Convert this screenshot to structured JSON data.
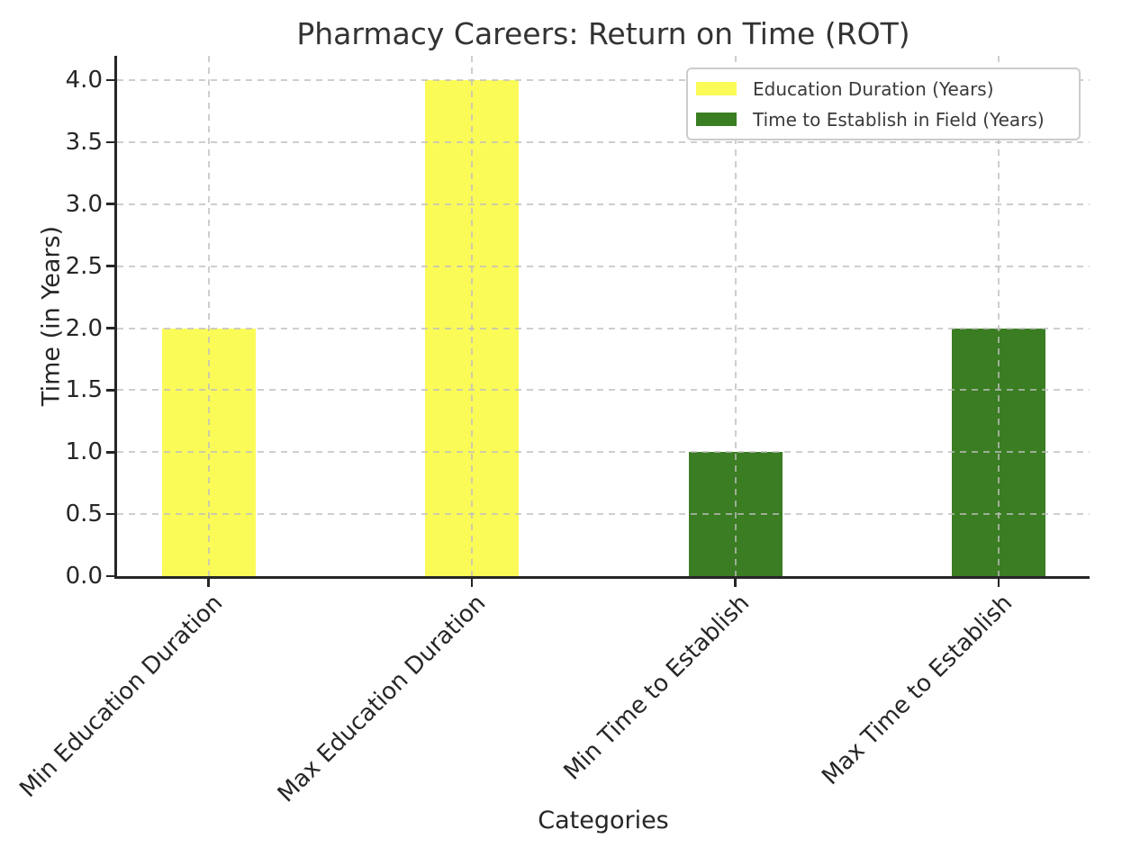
{
  "chart_data": {
    "type": "bar",
    "title": "Pharmacy Careers: Return on Time (ROT)",
    "xlabel": "Categories",
    "ylabel": "Time (in Years)",
    "categories": [
      "Min Education Duration",
      "Max Education Duration",
      "Min Time to Establish",
      "Max Time to Establish"
    ],
    "values": [
      2.0,
      4.0,
      1.0,
      2.0
    ],
    "bar_colors": [
      "#FBFB58",
      "#FBFB58",
      "#3A7D22",
      "#3A7D22"
    ],
    "series": [
      {
        "name": "Education Duration (Years)",
        "color": "#FBFB58",
        "categories": [
          "Min Education Duration",
          "Max Education Duration"
        ],
        "values": [
          2.0,
          4.0
        ]
      },
      {
        "name": "Time to Establish in Field (Years)",
        "color": "#3A7D22",
        "categories": [
          "Min Time to Establish",
          "Max Time to Establish"
        ],
        "values": [
          1.0,
          2.0
        ]
      }
    ],
    "ylim": [
      0.0,
      4.2
    ],
    "yticks": [
      0.0,
      0.5,
      1.0,
      1.5,
      2.0,
      2.5,
      3.0,
      3.5,
      4.0
    ],
    "ytick_labels": [
      "0.0",
      "0.5",
      "1.0",
      "1.5",
      "2.0",
      "2.5",
      "3.0",
      "3.5",
      "4.0"
    ],
    "grid": "dashed gridlines, both axes",
    "legend": {
      "position": "upper right",
      "entries": [
        {
          "label": "Education Duration (Years)",
          "color": "#FBFB58"
        },
        {
          "label": "Time to Establish in Field (Years)",
          "color": "#3A7D22"
        }
      ]
    },
    "colors": {
      "axis": "#262626",
      "grid": "#c9c9c9",
      "title_text": "#333333",
      "background": "#ffffff"
    }
  }
}
